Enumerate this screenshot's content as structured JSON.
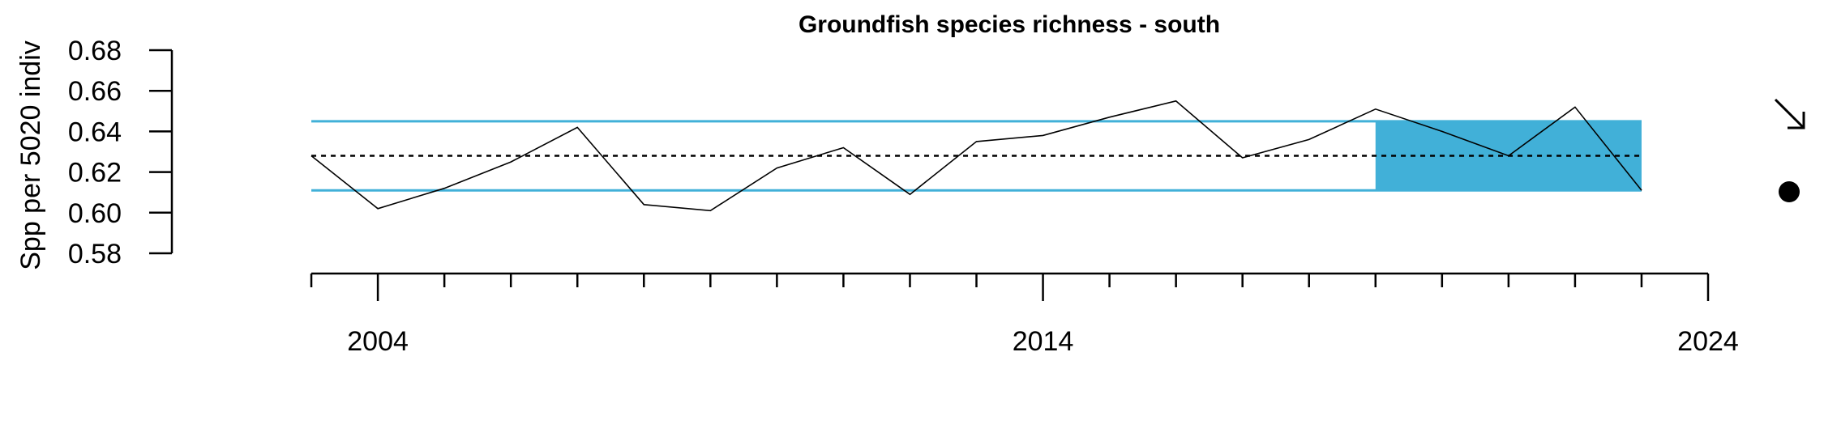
{
  "chart_data": {
    "type": "line",
    "title": "Groundfish species richness - south",
    "ylabel": "Spp per 5020 indiv",
    "xlabel": "",
    "xlim": [
      2002,
      2024
    ],
    "ylim": [
      0.58,
      0.68
    ],
    "y_ticks": [
      0.58,
      0.6,
      0.62,
      0.64,
      0.66,
      0.68
    ],
    "y_tick_labels": [
      "0.58",
      "0.60",
      "0.62",
      "0.64",
      "0.66",
      "0.68"
    ],
    "x_major_ticks": [
      2004,
      2014,
      2024
    ],
    "x_major_tick_labels": [
      "2004",
      "2014",
      "2024"
    ],
    "x_minor_ticks": [
      2003,
      2005,
      2006,
      2007,
      2008,
      2009,
      2010,
      2011,
      2012,
      2013,
      2015,
      2016,
      2017,
      2018,
      2019,
      2020,
      2021,
      2022,
      2023
    ],
    "series": [
      {
        "x": [
          2003,
          2004,
          2005,
          2006,
          2007,
          2008,
          2009,
          2010,
          2011,
          2012,
          2013,
          2014,
          2015,
          2016,
          2017,
          2018,
          2019,
          2020,
          2021,
          2022,
          2023
        ],
        "values": [
          0.628,
          0.602,
          0.612,
          0.625,
          0.642,
          0.604,
          0.601,
          0.622,
          0.632,
          0.609,
          0.635,
          0.638,
          0.647,
          0.655,
          0.627,
          0.636,
          0.651,
          0.64,
          0.628,
          0.652,
          0.611
        ]
      }
    ],
    "mean": 0.628,
    "upper_sd": 0.645,
    "lower_sd": 0.611,
    "highlight_range": [
      2019,
      2023
    ],
    "trend_symbol": "arrow-down-right",
    "status_symbol": "filled-circle",
    "colors": {
      "band": "#41b0d8",
      "line": "#000000",
      "mean": "#000000"
    },
    "grid": false
  }
}
